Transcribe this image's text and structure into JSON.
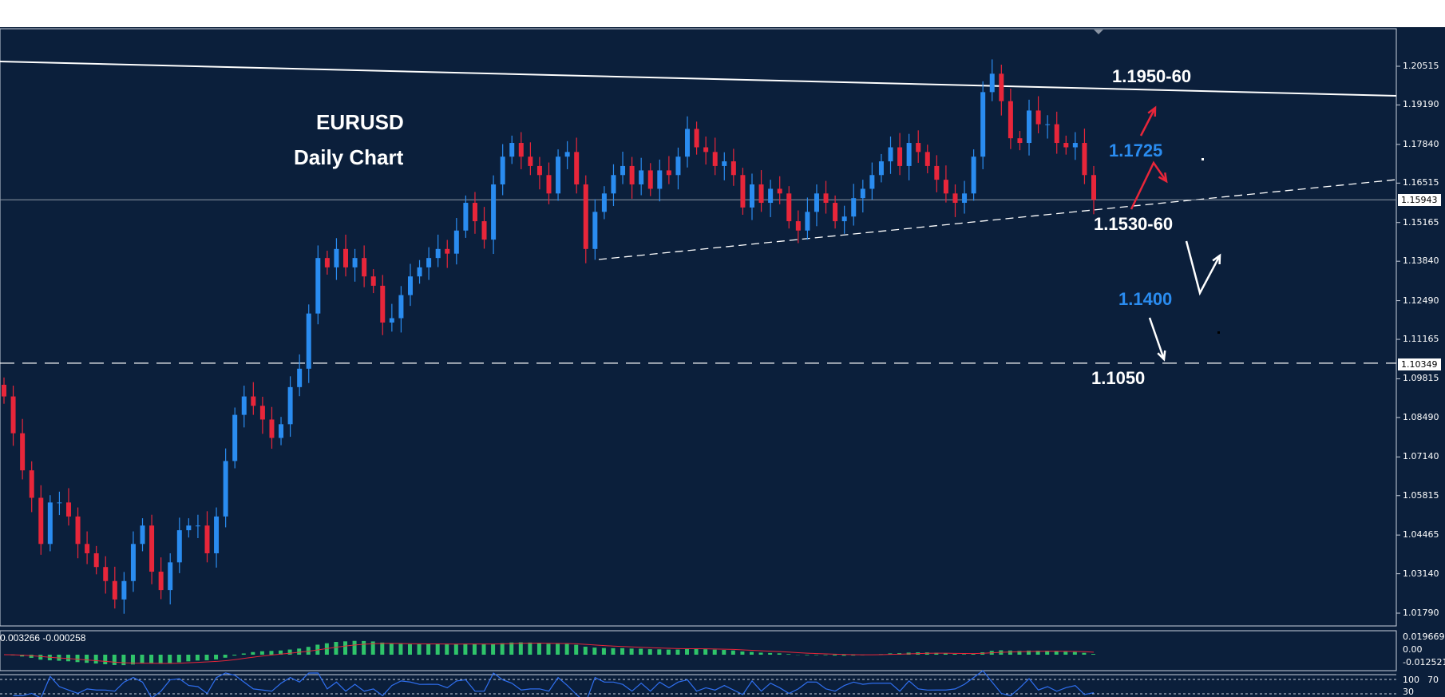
{
  "title": {
    "symbol": "EURUSD",
    "timeframe": "Daily Chart"
  },
  "colors": {
    "background": "#0b1f3b",
    "bull": "#2a8cf0",
    "bear": "#e8263a",
    "annotation_blue": "#2a8cf0",
    "annotation_white": "#ffffff",
    "macd_hist": "#2fc46a",
    "macd_signal": "#e8263a",
    "rsi": "#2f6ff0"
  },
  "annotations": {
    "resistance": "1.1950-60",
    "level_1725": "1.1725",
    "support": "1.1530-60",
    "level_1400": "1.1400",
    "level_1050": "1.1050"
  },
  "price_axis": {
    "ticks": [
      "1.20515",
      "1.19190",
      "1.17840",
      "1.16515",
      "1.15165",
      "1.13840",
      "1.12490",
      "1.11165",
      "1.09815",
      "1.08490",
      "1.07140",
      "1.05815",
      "1.04465",
      "1.03140",
      "1.01790"
    ],
    "current_price": "1.15943",
    "hline_price": "1.10349"
  },
  "macd": {
    "label": "0.003266 -0.000258",
    "ticks": [
      "0.019669",
      "0.00",
      "-0.012521"
    ]
  },
  "rsi": {
    "ticks": [
      "100",
      "70",
      "30"
    ]
  },
  "chart_data": {
    "type": "candlestick",
    "ylim": [
      1.0125,
      1.212
    ],
    "closes": [
      1.0921,
      1.0795,
      1.0668,
      1.0574,
      1.0416,
      1.0558,
      1.0558,
      1.051,
      1.0416,
      1.0384,
      1.0337,
      1.0289,
      1.0226,
      1.0289,
      1.0416,
      1.0479,
      1.0321,
      1.0258,
      1.0353,
      1.0463,
      1.0479,
      1.0479,
      1.0384,
      1.051,
      1.07,
      1.0858,
      1.0921,
      1.0889,
      1.0842,
      1.0779,
      1.0826,
      1.0953,
      1.1016,
      1.1205,
      1.1395,
      1.1363,
      1.1426,
      1.1363,
      1.1395,
      1.1332,
      1.13,
      1.1174,
      1.1189,
      1.1268,
      1.1332,
      1.1363,
      1.1395,
      1.1426,
      1.141,
      1.1489,
      1.1584,
      1.1521,
      1.1458,
      1.1647,
      1.1742,
      1.1789,
      1.1742,
      1.171,
      1.1679,
      1.1616,
      1.1742,
      1.1758,
      1.1647,
      1.1426,
      1.1553,
      1.1616,
      1.1679,
      1.171,
      1.1647,
      1.1695,
      1.1632,
      1.1695,
      1.1679,
      1.1742,
      1.1837,
      1.1774,
      1.1758,
      1.171,
      1.1726,
      1.1679,
      1.1568,
      1.1647,
      1.1584,
      1.1632,
      1.1616,
      1.1521,
      1.1489,
      1.1553,
      1.1616,
      1.1584,
      1.1521,
      1.1537,
      1.16,
      1.1632,
      1.1679,
      1.1726,
      1.1774,
      1.171,
      1.1789,
      1.1758,
      1.171,
      1.1663,
      1.1616,
      1.1584,
      1.1616,
      1.1742,
      1.1963,
      1.2026,
      1.1932,
      1.1805,
      1.1789,
      1.19,
      1.1853,
      1.1853,
      1.1789,
      1.1774,
      1.1789,
      1.1679,
      1.1594
    ]
  }
}
